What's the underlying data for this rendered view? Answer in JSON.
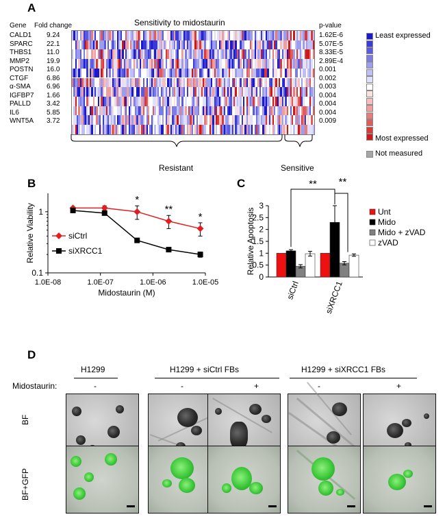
{
  "panel_a": {
    "letter": "A",
    "title": "Sensitivity to midostaurin",
    "col_gene": "Gene",
    "col_fold": "Fold change",
    "col_pvalue": "p-value",
    "genes": [
      {
        "gene": "CALD1",
        "fold": "9.24",
        "p": "1.62E-6"
      },
      {
        "gene": "SPARC",
        "fold": "22.1",
        "p": "5.07E-5"
      },
      {
        "gene": "THBS1",
        "fold": "11.0",
        "p": "8.33E-5"
      },
      {
        "gene": "MMP2",
        "fold": "19.9",
        "p": "2.89E-4"
      },
      {
        "gene": "POSTN",
        "fold": "16.0",
        "p": "0.001"
      },
      {
        "gene": "CTGF",
        "fold": "6.86",
        "p": "0.002"
      },
      {
        "gene": "α-SMA",
        "fold": "6.96",
        "p": "0.003"
      },
      {
        "gene": "IGFBP7",
        "fold": "1.66",
        "p": "0.004"
      },
      {
        "gene": "PALLD",
        "fold": "3.42",
        "p": "0.004"
      },
      {
        "gene": "IL6",
        "fold": "5.85",
        "p": "0.004"
      },
      {
        "gene": "WNT5A",
        "fold": "3.72",
        "p": "0.009"
      }
    ],
    "legend_least": "Least expressed",
    "legend_most": "Most expressed",
    "legend_not_measured": "Not measured",
    "group_resistant": "Resistant",
    "group_sensitive": "Sensitive",
    "legend_colors": [
      "#1a1acc",
      "#3a3ad8",
      "#5b5be0",
      "#7c7ce8",
      "#9d9df0",
      "#bfbff6",
      "#e0e0fb",
      "#ffffff",
      "#fbe0e0",
      "#f6bfbf",
      "#f09d9d",
      "#e87c7c",
      "#e05b5b",
      "#d83a3a",
      "#cc1a1a"
    ],
    "not_measured_color": "#a6a6a6"
  },
  "panel_b": {
    "letter": "B",
    "chart_data": {
      "type": "line",
      "xscale": "log",
      "yscale": "log",
      "x": [
        3e-08,
        1.2e-07,
        5e-07,
        2e-06,
        8e-06
      ],
      "series": [
        {
          "name": "siCtrl",
          "color": "#e02020",
          "marker": "diamond",
          "values": [
            1.15,
            1.15,
            1.0,
            0.7,
            0.53
          ],
          "err": [
            0.05,
            0.1,
            0.25,
            0.17,
            0.13
          ]
        },
        {
          "name": "siXRCC1",
          "color": "#000000",
          "marker": "square",
          "values": [
            1.05,
            0.95,
            0.34,
            0.24,
            0.2
          ],
          "err": [
            0.03,
            0.05,
            0.02,
            0.02,
            0.02
          ]
        }
      ],
      "significance": [
        {
          "x": 5e-07,
          "label": "*"
        },
        {
          "x": 2e-06,
          "label": "**"
        },
        {
          "x": 8e-06,
          "label": "*"
        }
      ],
      "xlabel": "Midostaurin (M)",
      "ylabel": "Relative Viability",
      "xlim": [
        1e-08,
        1e-05
      ],
      "ylim": [
        0.1,
        2
      ],
      "xticks": [
        "1.0E-08",
        "1.0E-07",
        "1.0E-06",
        "1.0E-05"
      ],
      "yticks": [
        "0.1",
        "1"
      ]
    }
  },
  "panel_c": {
    "letter": "C",
    "chart_data": {
      "type": "bar",
      "categories": [
        "siCtrl",
        "siXRCC1"
      ],
      "series": [
        {
          "name": "Unt",
          "color": "#ee1111",
          "values": [
            1.0,
            1.0
          ],
          "err": [
            0,
            0
          ]
        },
        {
          "name": "Mido",
          "color": "#000000",
          "values": [
            1.1,
            2.3
          ],
          "err": [
            0.05,
            0.7
          ]
        },
        {
          "name": "Mido + zVAD",
          "color": "#808080",
          "values": [
            0.45,
            0.58
          ],
          "err": [
            0.07,
            0.07
          ]
        },
        {
          "name": "zVAD",
          "color": "#ffffff",
          "values": [
            0.98,
            0.92
          ],
          "err": [
            0.1,
            0.05
          ]
        }
      ],
      "ylabel": "Relative Apoptosis",
      "ylim": [
        0,
        3
      ],
      "yticks": [
        "0",
        "0.5",
        "1",
        "1.5",
        "2",
        "2.5",
        "3"
      ],
      "significance": [
        "**",
        "**"
      ]
    }
  },
  "panel_d": {
    "letter": "D",
    "header_h1299": "H1299",
    "header_sictrl": "H1299 + siCtrl FBs",
    "header_sixrcc1": "H1299 + siXRCC1 FBs",
    "midostaurin_label": "Midostaurin:",
    "treat": [
      "-",
      "-",
      "+",
      "-",
      "+"
    ],
    "row_bf": "BF",
    "row_bfgfp": "BF+GFP"
  }
}
